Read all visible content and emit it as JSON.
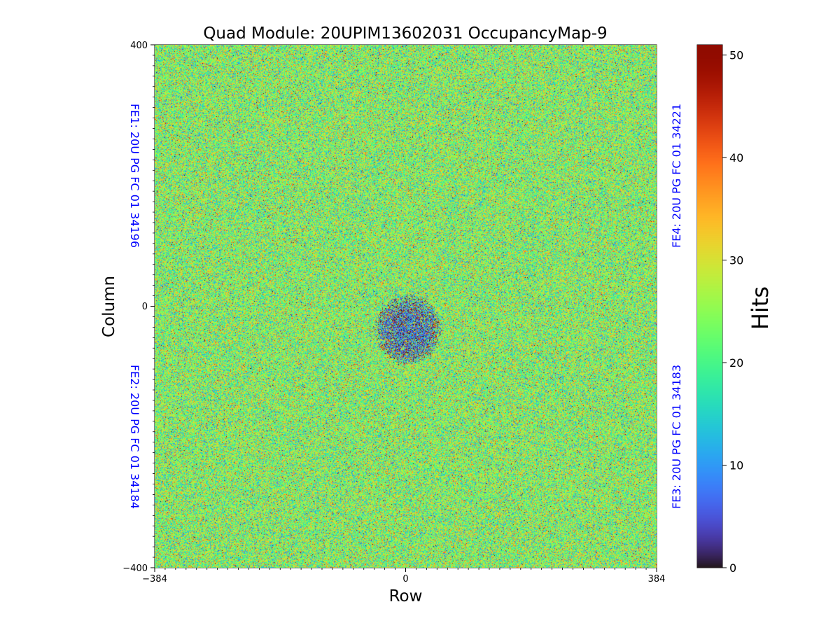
{
  "chart_data": {
    "type": "heatmap",
    "title": "Quad Module: 20UPIM13602031 OccupancyMap-9",
    "xlabel": "Row",
    "ylabel": "Column",
    "xlim": [
      -384,
      384
    ],
    "ylim": [
      -400,
      400
    ],
    "x_ticks": [
      "−384",
      "0",
      "384"
    ],
    "y_ticks": [
      "400",
      "0",
      "−400"
    ],
    "colorbar": {
      "label": "Hits",
      "range": [
        0,
        51
      ],
      "ticks": [
        "0",
        "10",
        "20",
        "30",
        "40",
        "50"
      ],
      "colormap": "turbo"
    },
    "quadrant_labels": [
      {
        "id": "FE1",
        "text": "FE1: 20U PG FC 01 34196",
        "position": "left-top"
      },
      {
        "id": "FE2",
        "text": "FE2: 20U PG FC 01 34184",
        "position": "left-bottom"
      },
      {
        "id": "FE3",
        "text": "FE3: 20U PG FC 01 34183",
        "position": "right-bottom"
      },
      {
        "id": "FE4",
        "text": "FE4: 20U PG FC 01 34221",
        "position": "right-top"
      }
    ],
    "quadrant_label_color": "#0000ff",
    "divider_lines": {
      "x": 0,
      "y": 0
    },
    "distribution": {
      "typical_hits": 24,
      "spread": 8,
      "min": 0,
      "max": 51
    },
    "low_occupancy_region": {
      "x_range": [
        -48,
        56
      ],
      "y_range": [
        -90,
        18
      ],
      "typical_hits": 6
    }
  }
}
